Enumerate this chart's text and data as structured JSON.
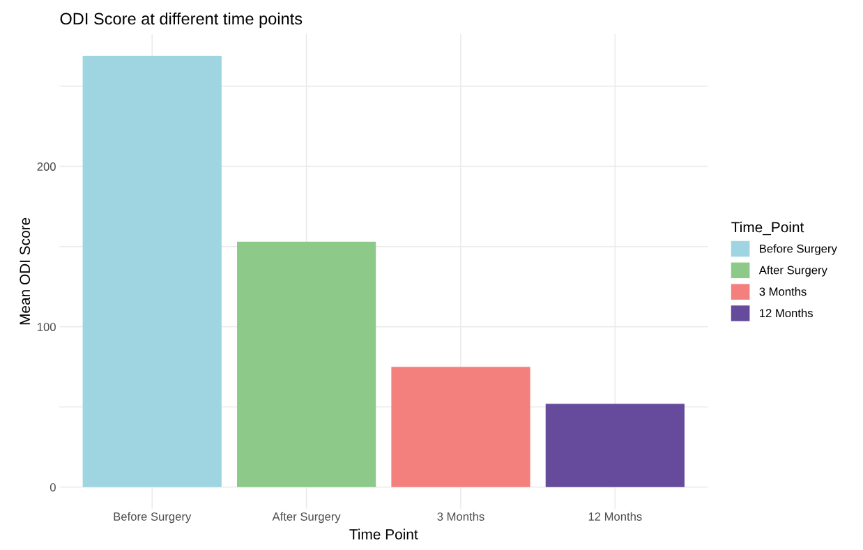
{
  "chart_data": {
    "type": "bar",
    "title": "ODI Score at different time points",
    "xlabel": "Time Point",
    "ylabel": "Mean ODI Score",
    "legend_title": "Time_Point",
    "categories": [
      "Before Surgery",
      "After Surgery",
      "3 Months",
      "12 Months"
    ],
    "series": [
      {
        "name": "Before Surgery",
        "color": "#9fd5e1",
        "values": [
          269,
          null,
          null,
          null
        ]
      },
      {
        "name": "After Surgery",
        "color": "#8dca8a",
        "values": [
          null,
          153,
          null,
          null
        ]
      },
      {
        "name": "3 Months",
        "color": "#f4807e",
        "values": [
          null,
          null,
          75,
          null
        ]
      },
      {
        "name": "12 Months",
        "color": "#664b9c",
        "values": [
          null,
          null,
          null,
          52
        ]
      }
    ],
    "ylim": [
      -13.5,
      282.5
    ],
    "yticks": [
      0,
      {
        "value": 50,
        "label": null
      },
      100,
      {
        "value": 150,
        "label": null
      },
      200,
      {
        "value": 250,
        "label": null
      }
    ],
    "grid": true,
    "legend": "right"
  }
}
